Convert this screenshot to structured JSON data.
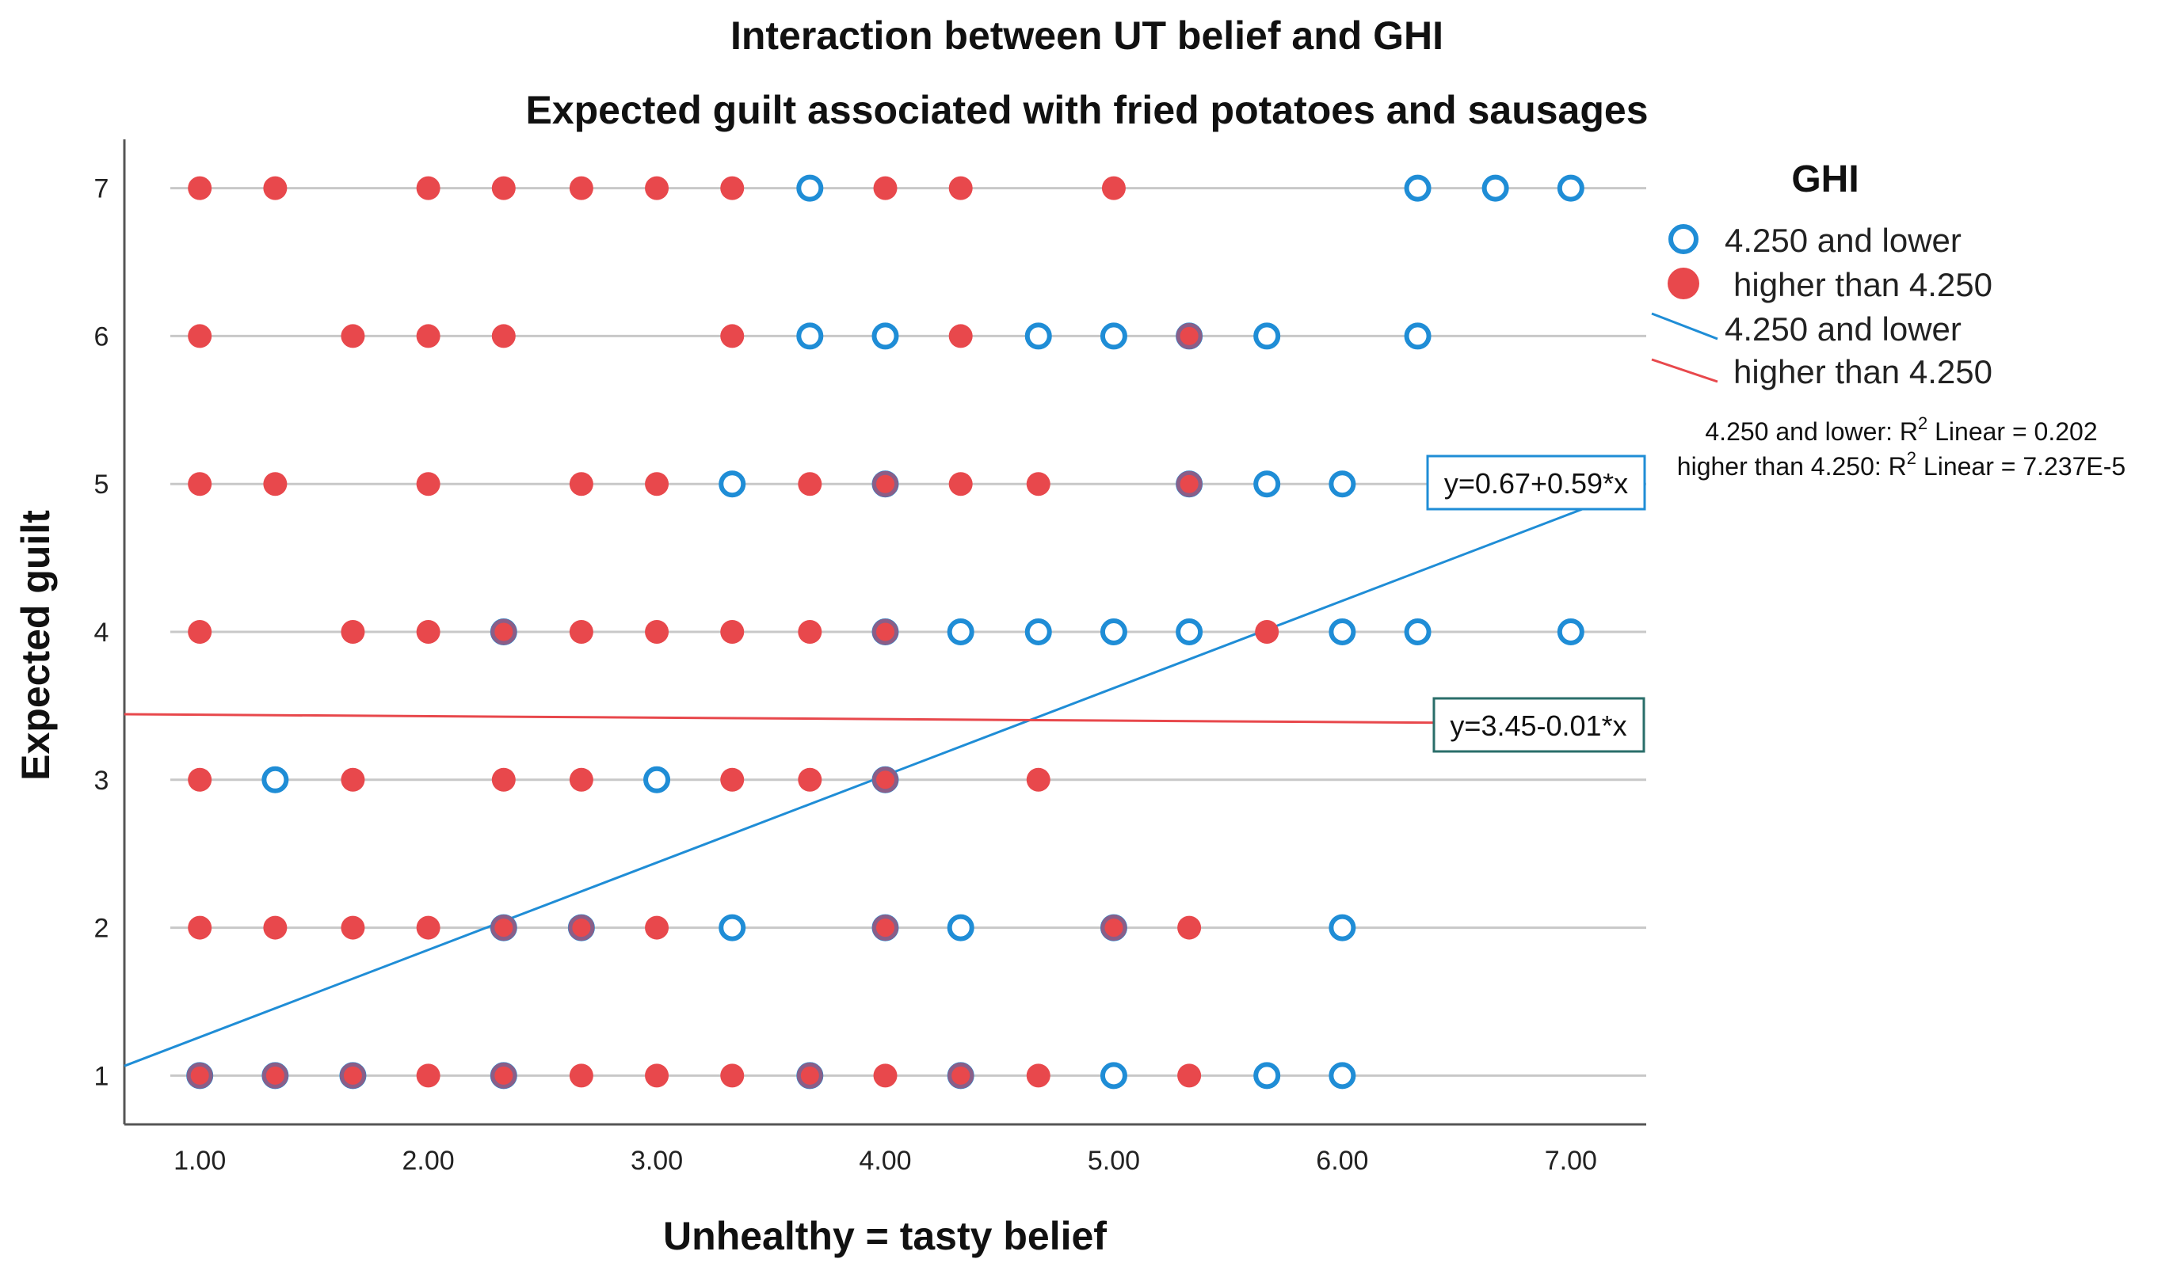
{
  "chart_data": {
    "type": "scatter",
    "title": "Interaction between UT belief and GHI",
    "subtitle": "Expected guilt associated with fried potatoes and sausages",
    "xlabel": "Unhealthy = tasty belief",
    "ylabel": "Expected guilt",
    "xlim": [
      0.67,
      7.33
    ],
    "ylim": [
      0.67,
      7.33
    ],
    "x_ticks": [
      "1.00",
      "2.00",
      "3.00",
      "4.00",
      "5.00",
      "6.00",
      "7.00"
    ],
    "y_ticks": [
      "1",
      "2",
      "3",
      "4",
      "5",
      "6",
      "7"
    ],
    "y_gridlines": [
      1,
      2,
      3,
      4,
      5,
      6,
      7
    ],
    "legend": {
      "title": "GHI",
      "position": "right",
      "entries": [
        {
          "label": "4.250 and lower",
          "kind": "open-marker"
        },
        {
          "label": "higher than 4.250",
          "kind": "filled-marker"
        },
        {
          "label": "4.250 and lower",
          "kind": "line"
        },
        {
          "label": "higher than 4.250",
          "kind": "line"
        }
      ]
    },
    "r_squared": {
      "low_label": "4.250 and lower: R",
      "low_value": " Linear = 0.202",
      "high_label": "higher than 4.250: R",
      "high_value": " Linear = 7.237E-5",
      "superscript": "2"
    },
    "series": [
      {
        "name": "4.250 and lower",
        "marker": "open",
        "color": "#1f8dd6",
        "points": [
          [
            3.67,
            7
          ],
          [
            6.33,
            7
          ],
          [
            6.67,
            7
          ],
          [
            7.0,
            7
          ],
          [
            3.67,
            6
          ],
          [
            4.0,
            6
          ],
          [
            4.67,
            6
          ],
          [
            5.0,
            6
          ],
          [
            5.33,
            6
          ],
          [
            5.67,
            6
          ],
          [
            6.33,
            6
          ],
          [
            3.33,
            5
          ],
          [
            4.0,
            5
          ],
          [
            5.33,
            5
          ],
          [
            5.67,
            5
          ],
          [
            6.0,
            5
          ],
          [
            2.33,
            4
          ],
          [
            4.0,
            4
          ],
          [
            4.33,
            4
          ],
          [
            4.67,
            4
          ],
          [
            5.0,
            4
          ],
          [
            5.33,
            4
          ],
          [
            6.0,
            4
          ],
          [
            6.33,
            4
          ],
          [
            7.0,
            4
          ],
          [
            1.33,
            3
          ],
          [
            3.0,
            3
          ],
          [
            4.0,
            3
          ],
          [
            2.33,
            2
          ],
          [
            2.67,
            2
          ],
          [
            3.33,
            2
          ],
          [
            4.0,
            2
          ],
          [
            4.33,
            2
          ],
          [
            5.0,
            2
          ],
          [
            6.0,
            2
          ],
          [
            1.0,
            1
          ],
          [
            1.33,
            1
          ],
          [
            1.67,
            1
          ],
          [
            2.33,
            1
          ],
          [
            3.67,
            1
          ],
          [
            4.33,
            1
          ],
          [
            5.0,
            1
          ],
          [
            5.67,
            1
          ],
          [
            6.0,
            1
          ]
        ],
        "fit": {
          "intercept": 0.67,
          "slope": 0.59,
          "equation": "y=0.67+0.59*x"
        }
      },
      {
        "name": "higher than 4.250",
        "marker": "filled",
        "color": "#e8484c",
        "points": [
          [
            1.0,
            7
          ],
          [
            1.33,
            7
          ],
          [
            2.0,
            7
          ],
          [
            2.33,
            7
          ],
          [
            2.67,
            7
          ],
          [
            3.0,
            7
          ],
          [
            3.33,
            7
          ],
          [
            4.0,
            7
          ],
          [
            4.33,
            7
          ],
          [
            5.0,
            7
          ],
          [
            1.0,
            6
          ],
          [
            1.67,
            6
          ],
          [
            2.0,
            6
          ],
          [
            2.33,
            6
          ],
          [
            3.33,
            6
          ],
          [
            4.33,
            6
          ],
          [
            5.33,
            6
          ],
          [
            1.0,
            5
          ],
          [
            1.33,
            5
          ],
          [
            2.0,
            5
          ],
          [
            2.67,
            5
          ],
          [
            3.0,
            5
          ],
          [
            3.67,
            5
          ],
          [
            4.0,
            5
          ],
          [
            4.33,
            5
          ],
          [
            4.67,
            5
          ],
          [
            5.33,
            5
          ],
          [
            1.0,
            4
          ],
          [
            1.67,
            4
          ],
          [
            2.0,
            4
          ],
          [
            2.33,
            4
          ],
          [
            2.67,
            4
          ],
          [
            3.0,
            4
          ],
          [
            3.33,
            4
          ],
          [
            3.67,
            4
          ],
          [
            4.0,
            4
          ],
          [
            5.67,
            4
          ],
          [
            1.0,
            3
          ],
          [
            1.67,
            3
          ],
          [
            2.33,
            3
          ],
          [
            2.67,
            3
          ],
          [
            3.33,
            3
          ],
          [
            3.67,
            3
          ],
          [
            4.0,
            3
          ],
          [
            4.67,
            3
          ],
          [
            1.0,
            2
          ],
          [
            1.33,
            2
          ],
          [
            1.67,
            2
          ],
          [
            2.0,
            2
          ],
          [
            2.33,
            2
          ],
          [
            2.67,
            2
          ],
          [
            3.0,
            2
          ],
          [
            4.0,
            2
          ],
          [
            5.0,
            2
          ],
          [
            5.33,
            2
          ],
          [
            1.0,
            1
          ],
          [
            1.33,
            1
          ],
          [
            1.67,
            1
          ],
          [
            2.0,
            1
          ],
          [
            2.33,
            1
          ],
          [
            2.67,
            1
          ],
          [
            3.0,
            1
          ],
          [
            3.33,
            1
          ],
          [
            3.67,
            1
          ],
          [
            4.0,
            1
          ],
          [
            4.33,
            1
          ],
          [
            4.67,
            1
          ],
          [
            5.33,
            1
          ]
        ],
        "fit": {
          "intercept": 3.45,
          "slope": -0.01,
          "equation": "y=3.45-0.01*x"
        }
      }
    ]
  },
  "colors": {
    "open_series": "#1f8dd6",
    "filled_series": "#e8484c",
    "overlap_ring": "#8a5e88",
    "grid": "#c8c8c8",
    "axis": "#555555"
  }
}
